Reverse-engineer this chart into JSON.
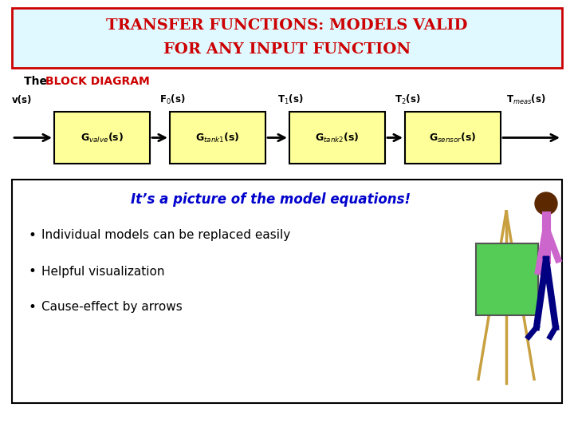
{
  "title_line1": "TRANSFER FUNCTIONS: MODELS VALID",
  "title_line2": "FOR ANY INPUT FUNCTION",
  "title_color": "#CC0000",
  "title_bg": "#E0F8FF",
  "title_border": "#CC0000",
  "block_labels": [
    "G$_{valve}$(s)",
    "G$_{tank1}$(s)",
    "G$_{tank2}$(s)",
    "G$_{sensor}$(s)"
  ],
  "signal_labels": [
    "v(s)",
    "F$_0$(s)",
    "T$_1$(s)",
    "T$_2$(s)",
    "T$_{meas}$(s)"
  ],
  "block_color": "#FFFF99",
  "block_edge": "#000000",
  "arrow_color": "#000000",
  "highlight_text": "It’s a picture of the model equations!",
  "highlight_color": "#0000CC",
  "bullets": [
    "Individual models can be replaced easily",
    "Helpful visualization",
    "Cause-effect by arrows"
  ],
  "bullet_color": "#000000",
  "bottom_box_bg": "#FFFFFF",
  "bottom_box_border": "#000000",
  "bg_color": "#FFFFFF",
  "subtitle_color_plain": "#000000",
  "subtitle_color_bold": "#CC0000"
}
